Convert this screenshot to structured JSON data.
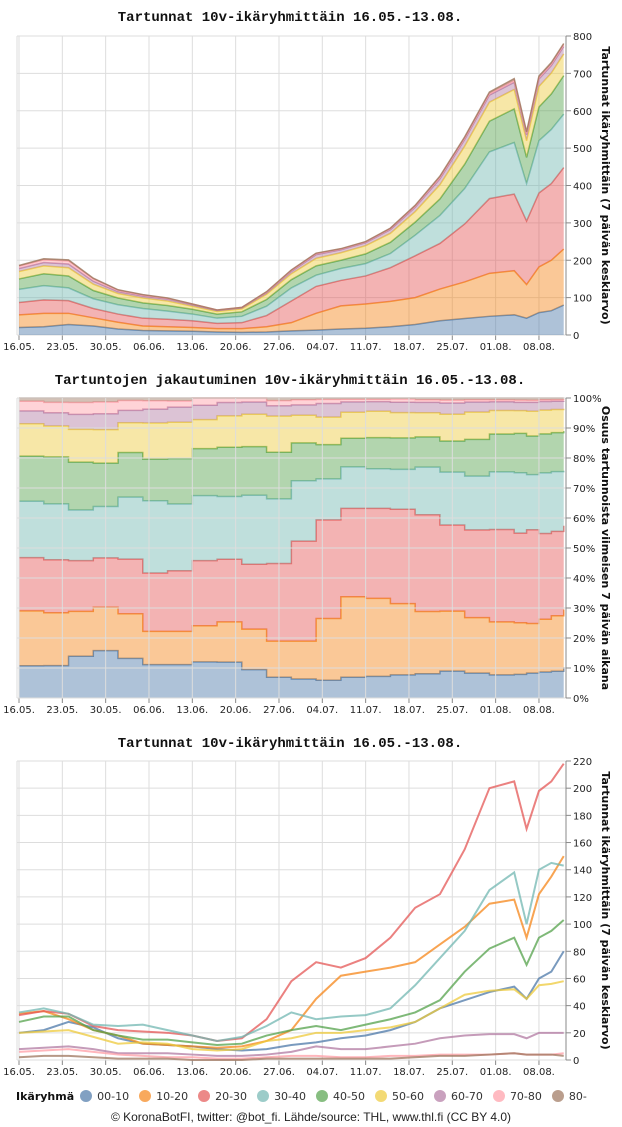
{
  "legend": {
    "title": "Ikäryhmä",
    "items": [
      {
        "label": "00-10",
        "color": "#4c78a8"
      },
      {
        "label": "10-20",
        "color": "#f58518"
      },
      {
        "label": "20-30",
        "color": "#e45756"
      },
      {
        "label": "30-40",
        "color": "#72b7b2"
      },
      {
        "label": "40-50",
        "color": "#54a24b"
      },
      {
        "label": "50-60",
        "color": "#eeca3b"
      },
      {
        "label": "60-70",
        "color": "#b279a2"
      },
      {
        "label": "70-80",
        "color": "#ff9da6"
      },
      {
        "label": "80-",
        "color": "#9d755d"
      }
    ]
  },
  "footer": "© KoronaBotFI, twitter: @bot_fi. Lähde/source: THL, www.thl.fi (CC BY 4.0)",
  "chart_data": [
    {
      "type": "area",
      "stacked": true,
      "title": "Tartunnat 10v-ikäryhmittäin 16.05.-13.08.",
      "xlabel": "",
      "ylabel": "Tartunnat ikäryhmittäin (7 päivän keskiarvo)",
      "ylim": [
        0,
        800
      ],
      "yticks": [
        "0",
        "100",
        "200",
        "300",
        "400",
        "500",
        "600",
        "700",
        "800"
      ],
      "xticks": [
        "16.05.",
        "23.05.",
        "30.05.",
        "06.06.",
        "13.06.",
        "20.06.",
        "27.06.",
        "04.07.",
        "11.07.",
        "18.07.",
        "25.07.",
        "01.08.",
        "08.08."
      ],
      "grid": true,
      "series_source": "same series as line chart, stacked"
    },
    {
      "type": "area",
      "stacked": true,
      "normalized": true,
      "title": "Tartuntojen jakautuminen 10v-ikäryhmittäin 16.05.-13.08.",
      "xlabel": "",
      "ylabel": "Osuus tartunnoista viimeisen 7 päivän aikana",
      "ylim": [
        0,
        100
      ],
      "yticks": [
        "0%",
        "10%",
        "20%",
        "30%",
        "40%",
        "50%",
        "60%",
        "70%",
        "80%",
        "90%",
        "100%"
      ],
      "xticks": [
        "16.05.",
        "23.05.",
        "30.05.",
        "06.06.",
        "13.06.",
        "20.06.",
        "27.06.",
        "04.07.",
        "11.07.",
        "18.07.",
        "25.07.",
        "01.08.",
        "08.08."
      ],
      "grid": true,
      "series_source": "same series as line chart, normalized to 100%"
    },
    {
      "type": "line",
      "title": "Tartunnat 10v-ikäryhmittäin 16.05.-13.08.",
      "xlabel": "",
      "ylabel": "Tartunnat ikäryhmittäin (7 päivän keskiarvo)",
      "ylim": [
        0,
        220
      ],
      "yticks": [
        "0",
        "20",
        "40",
        "60",
        "80",
        "100",
        "120",
        "140",
        "160",
        "180",
        "200",
        "220"
      ],
      "xticks": [
        "16.05.",
        "23.05.",
        "30.05.",
        "06.06.",
        "13.06.",
        "20.06.",
        "27.06.",
        "04.07.",
        "11.07.",
        "18.07.",
        "25.07.",
        "01.08.",
        "08.08."
      ],
      "grid": true,
      "legend_position": "bottom",
      "x_days": [
        0,
        4,
        8,
        12,
        16,
        20,
        24,
        28,
        32,
        36,
        40,
        44,
        48,
        52,
        56,
        60,
        64,
        68,
        72,
        76,
        80,
        82,
        84,
        86,
        88
      ],
      "series": [
        {
          "name": "00-10",
          "values": [
            20,
            22,
            28,
            24,
            16,
            12,
            11,
            10,
            8,
            7,
            8,
            11,
            13,
            16,
            18,
            22,
            28,
            38,
            44,
            50,
            54,
            45,
            60,
            65,
            80
          ]
        },
        {
          "name": "10-20",
          "values": [
            34,
            36,
            30,
            22,
            18,
            12,
            11,
            10,
            9,
            10,
            14,
            22,
            45,
            62,
            65,
            68,
            72,
            85,
            98,
            115,
            118,
            90,
            122,
            135,
            150
          ]
        },
        {
          "name": "20-30",
          "values": [
            33,
            36,
            34,
            25,
            22,
            21,
            20,
            18,
            14,
            16,
            30,
            58,
            72,
            68,
            75,
            90,
            112,
            122,
            155,
            200,
            205,
            170,
            198,
            205,
            218
          ]
        },
        {
          "name": "30-40",
          "values": [
            35,
            38,
            34,
            26,
            25,
            26,
            22,
            18,
            14,
            17,
            25,
            35,
            30,
            32,
            33,
            38,
            55,
            75,
            95,
            125,
            138,
            100,
            140,
            145,
            143
          ]
        },
        {
          "name": "40-50",
          "values": [
            28,
            32,
            32,
            22,
            18,
            15,
            15,
            13,
            11,
            12,
            18,
            22,
            25,
            22,
            26,
            30,
            35,
            44,
            65,
            82,
            90,
            70,
            90,
            95,
            103
          ]
        },
        {
          "name": "50-60",
          "values": [
            20,
            21,
            22,
            17,
            12,
            13,
            12,
            8,
            7,
            8,
            14,
            16,
            20,
            20,
            22,
            24,
            28,
            38,
            48,
            51,
            52,
            45,
            55,
            56,
            58
          ]
        },
        {
          "name": "60-70",
          "values": [
            8,
            9,
            10,
            8,
            5,
            5,
            5,
            4,
            3,
            3,
            4,
            6,
            10,
            8,
            8,
            10,
            12,
            16,
            18,
            19,
            19,
            16,
            20,
            20,
            20
          ]
        },
        {
          "name": "70-80",
          "values": [
            6,
            7,
            8,
            6,
            4,
            3,
            2,
            2,
            1,
            1,
            2,
            3,
            3,
            2,
            2,
            3,
            3,
            4,
            4,
            4,
            5,
            4,
            4,
            4,
            5
          ]
        },
        {
          "name": "80-",
          "values": [
            2,
            3,
            3,
            2,
            1,
            1,
            1,
            0,
            0,
            0,
            1,
            1,
            1,
            1,
            1,
            1,
            2,
            3,
            3,
            4,
            5,
            4,
            4,
            4,
            3
          ]
        }
      ]
    }
  ]
}
